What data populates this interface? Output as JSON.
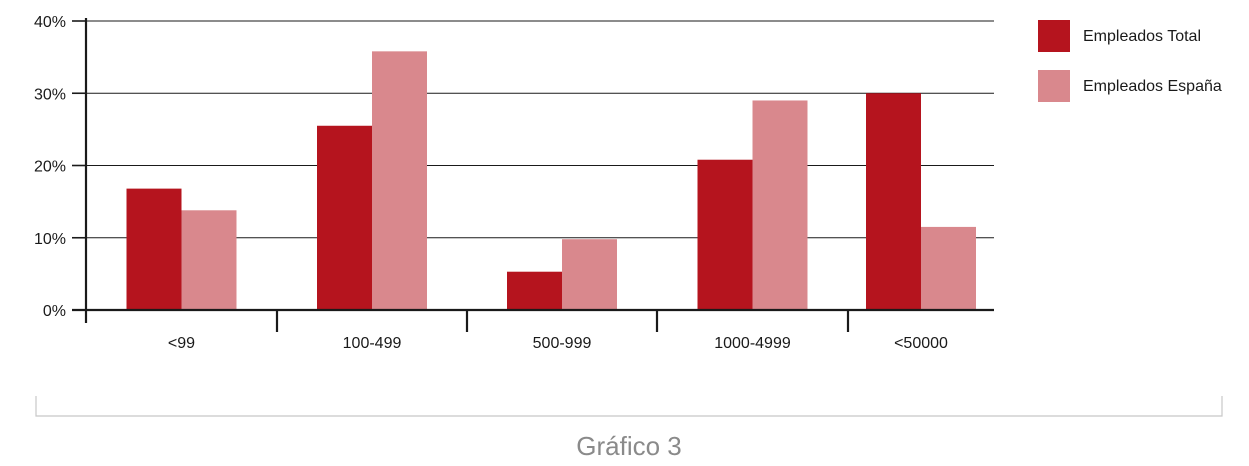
{
  "chart_data": {
    "type": "bar",
    "categories": [
      "<99",
      "100-499",
      "500-999",
      "1000-4999",
      "<50000"
    ],
    "series": [
      {
        "name": "Empleados Total",
        "color": "#b5141e",
        "values": [
          16.8,
          25.5,
          5.3,
          20.8,
          30.0
        ]
      },
      {
        "name": "Empleados España",
        "color": "#d9888d",
        "values": [
          13.8,
          35.8,
          9.8,
          29.0,
          11.5
        ]
      }
    ],
    "ylim": [
      0,
      40
    ],
    "yticks": [
      0,
      10,
      20,
      30,
      40
    ],
    "ytick_labels": [
      "0%",
      "10%",
      "20%",
      "30%",
      "40%"
    ],
    "grid": true,
    "legend_position": "right",
    "title": "",
    "xlabel": "",
    "ylabel": ""
  },
  "caption": "Gráfico 3"
}
